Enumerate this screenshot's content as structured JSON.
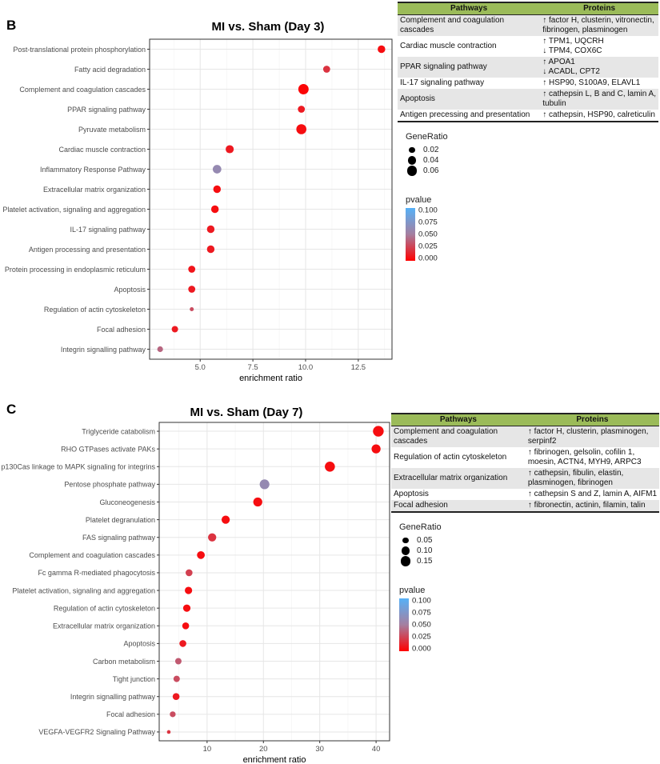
{
  "chart_data": [
    {
      "panel": "B",
      "type": "scatter",
      "title": "MI vs. Sham (Day 3)",
      "xlabel": "enrichment ratio",
      "ylabel": "",
      "xlim": [
        2.6,
        14.1
      ],
      "xticks": [
        5.0,
        7.5,
        10.0,
        12.5
      ],
      "xtick_labels": [
        "5.0",
        "7.5",
        "10.0",
        "12.5"
      ],
      "grid": true,
      "categories": [
        "Post-translational protein phosphorylation",
        "Fatty acid degradation",
        "Complement and coagulation cascades",
        "PPAR signaling pathway",
        "Pyruvate metabolism",
        "Cardiac muscle contraction",
        "Inflammatory Response Pathway",
        "Extracellular matrix organization",
        "Platelet activation, signaling and aggregation",
        "IL-17 signaling pathway",
        "Antigen processing and presentation",
        "Protein processing in endoplasmic reticulum",
        "Apoptosis",
        "Regulation of actin cytoskeleton",
        "Focal adhesion",
        "Integrin signalling pathway"
      ],
      "x": [
        13.6,
        11.0,
        9.9,
        9.8,
        9.8,
        6.4,
        5.8,
        5.8,
        5.7,
        5.5,
        5.5,
        4.6,
        4.6,
        4.6,
        3.8,
        3.1
      ],
      "gene_ratio": [
        0.035,
        0.03,
        0.065,
        0.03,
        0.062,
        0.04,
        0.045,
        0.035,
        0.035,
        0.035,
        0.035,
        0.03,
        0.03,
        0.01,
        0.025,
        0.02
      ],
      "pvalue": [
        0.005,
        0.02,
        0.002,
        0.01,
        0.005,
        0.01,
        0.06,
        0.005,
        0.005,
        0.01,
        0.01,
        0.008,
        0.01,
        0.03,
        0.01,
        0.04
      ],
      "size_legend": {
        "title": "GeneRatio",
        "values": [
          0.02,
          0.04,
          0.06
        ],
        "labels": [
          "0.02",
          "0.04",
          "0.06"
        ]
      },
      "color_legend": {
        "title": "pvalue",
        "labels": [
          "0.100",
          "0.075",
          "0.050",
          "0.025",
          "0.000"
        ],
        "range": [
          0,
          0.1
        ],
        "low_color": "#ff0000",
        "high_color": "#56b1f7"
      }
    },
    {
      "panel": "C",
      "type": "scatter",
      "title": "MI vs. Sham (Day 7)",
      "xlabel": "enrichment ratio",
      "ylabel": "",
      "xlim": [
        1.5,
        42.4
      ],
      "xticks": [
        10,
        20,
        30,
        40
      ],
      "xtick_labels": [
        "10",
        "20",
        "30",
        "40"
      ],
      "grid": true,
      "categories": [
        "Triglyceride catabolism",
        "RHO GTPases activate PAKs",
        "p130Cas linkage to MAPK signaling for integrins",
        "Pentose phosphate pathway",
        "Gluconeogenesis",
        "Platelet degranulation",
        "FAS signaling pathway",
        "Complement and coagulation cascades",
        "Fc gamma R-mediated phagocytosis",
        "Platelet activation, signaling and aggregation",
        "Regulation of actin cytoskeleton",
        "Extracellular matrix organization",
        "Apoptosis",
        "Carbon metabolism",
        "Tight junction",
        "Integrin signalling pathway",
        "Focal adhesion",
        "VEGFA-VEGFR2 Signaling Pathway"
      ],
      "x": [
        40.4,
        40.0,
        31.8,
        20.2,
        19.0,
        13.3,
        10.9,
        8.9,
        6.8,
        6.7,
        6.4,
        6.2,
        5.7,
        4.9,
        4.6,
        4.5,
        3.9,
        3.2
      ],
      "gene_ratio": [
        0.17,
        0.12,
        0.15,
        0.14,
        0.12,
        0.1,
        0.1,
        0.09,
        0.07,
        0.08,
        0.08,
        0.07,
        0.07,
        0.06,
        0.06,
        0.07,
        0.05,
        0.02
      ],
      "pvalue": [
        0.005,
        0.005,
        0.005,
        0.06,
        0.005,
        0.005,
        0.02,
        0.005,
        0.025,
        0.005,
        0.005,
        0.005,
        0.01,
        0.035,
        0.03,
        0.01,
        0.03,
        0.02
      ],
      "size_legend": {
        "title": "GeneRatio",
        "values": [
          0.05,
          0.1,
          0.15
        ],
        "labels": [
          "0.05",
          "0.10",
          "0.15"
        ]
      },
      "color_legend": {
        "title": "pvalue",
        "labels": [
          "0.100",
          "0.075",
          "0.050",
          "0.025",
          "0.000"
        ],
        "range": [
          0,
          0.1
        ],
        "low_color": "#ff0000",
        "high_color": "#56b1f7"
      }
    }
  ],
  "tables": [
    {
      "headers": [
        "Pathways",
        "Proteins"
      ],
      "header_color": "#9bbb59",
      "rows": [
        {
          "pathway": "Complement and coagulation cascades",
          "proteins": [
            "↑ factor H, clusterin, vitronectin,",
            "fibrinogen, plasminogen"
          ]
        },
        {
          "pathway": "Cardiac muscle contraction",
          "proteins": [
            "↑ TPM1, UQCRH",
            "↓ TPM4, COX6C"
          ]
        },
        {
          "pathway": "PPAR signaling pathway",
          "proteins": [
            "↑ APOA1",
            "↓ ACADL, CPT2"
          ]
        },
        {
          "pathway": "IL-17 signaling pathway",
          "proteins": [
            "↑ HSP90, S100A9, ELAVL1"
          ]
        },
        {
          "pathway": "Apoptosis",
          "proteins": [
            "↑ cathepsin L, B and C, lamin A,",
            "tubulin"
          ]
        },
        {
          "pathway": "Antigen precessing and presentation",
          "proteins": [
            "↑ cathepsin, HSP90, calreticulin"
          ]
        }
      ]
    },
    {
      "headers": [
        "Pathways",
        "Proteins"
      ],
      "header_color": "#9bbb59",
      "rows": [
        {
          "pathway": "Complement and coagulation cascades",
          "proteins": [
            "↑ factor H, clusterin, plasminogen,",
            "serpinf2"
          ]
        },
        {
          "pathway": "Regulation of actin cytoskeleton",
          "proteins": [
            "↑ fibrinogen, gelsolin, cofilin 1,",
            "moesin, ACTN4, MYH9, ARPC3"
          ]
        },
        {
          "pathway": "Extracellular matrix organization",
          "proteins": [
            "↑ cathepsin, fibulin, elastin,",
            "plasminogen, fibrinogen"
          ]
        },
        {
          "pathway": "Apoptosis",
          "proteins": [
            "↑ cathepsin S and Z, lamin A, AIFM1"
          ]
        },
        {
          "pathway": "Focal adhesion",
          "proteins": [
            "↑ fibronectin, actinin, filamin, talin"
          ]
        }
      ]
    }
  ]
}
